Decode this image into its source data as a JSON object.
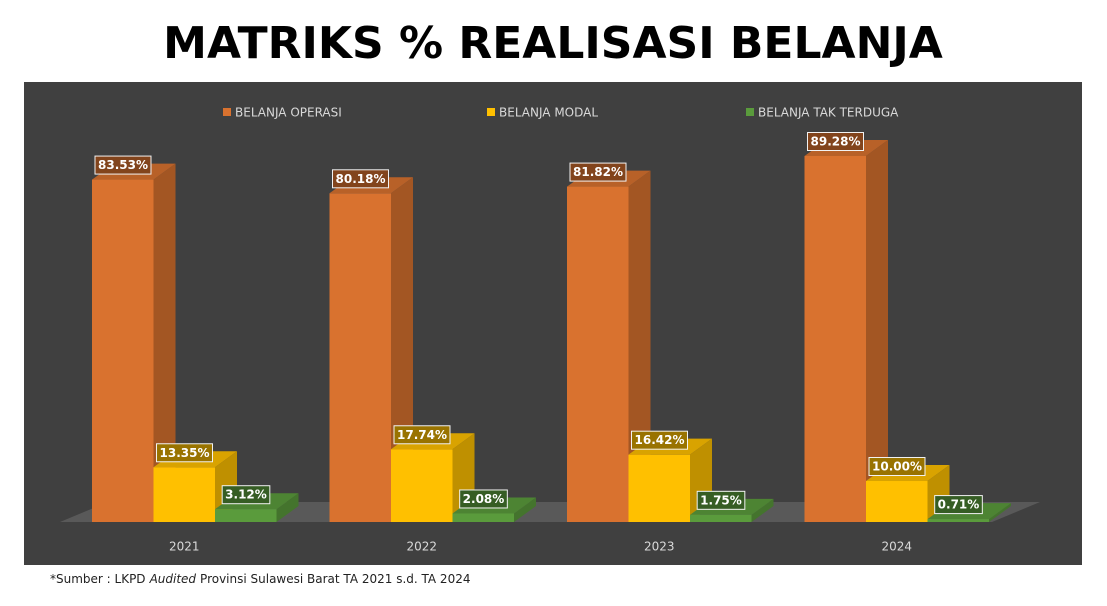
{
  "chart_data": {
    "type": "bar3d",
    "title": "MATRIKS % REALISASI BELANJA",
    "categories": [
      "2021",
      "2022",
      "2023",
      "2024"
    ],
    "series": [
      {
        "name": "BELANJA OPERASI",
        "color": "#D9722F",
        "values": [
          83.53,
          80.18,
          81.82,
          89.28
        ],
        "value_labels": [
          "83.53%",
          "80.18%",
          "81.82%",
          "89.28%"
        ]
      },
      {
        "name": "BELANJA MODAL",
        "color": "#FFC000",
        "values": [
          13.35,
          17.74,
          16.42,
          10.0
        ],
        "value_labels": [
          "13.35%",
          "17.74%",
          "16.42%",
          "10.00%"
        ]
      },
      {
        "name": "BELANJA TAK TERDUGA",
        "color": "#5A9B3C",
        "values": [
          3.12,
          2.08,
          1.75,
          0.71
        ],
        "value_labels": [
          "3.12%",
          "2.08%",
          "1.75%",
          "0.71%"
        ]
      }
    ],
    "legend": "top",
    "source": [
      "*Sumber : LKPD",
      "Audited",
      "Provinsi Sulawesi Barat TA 2021 s.d. TA 2024"
    ]
  }
}
